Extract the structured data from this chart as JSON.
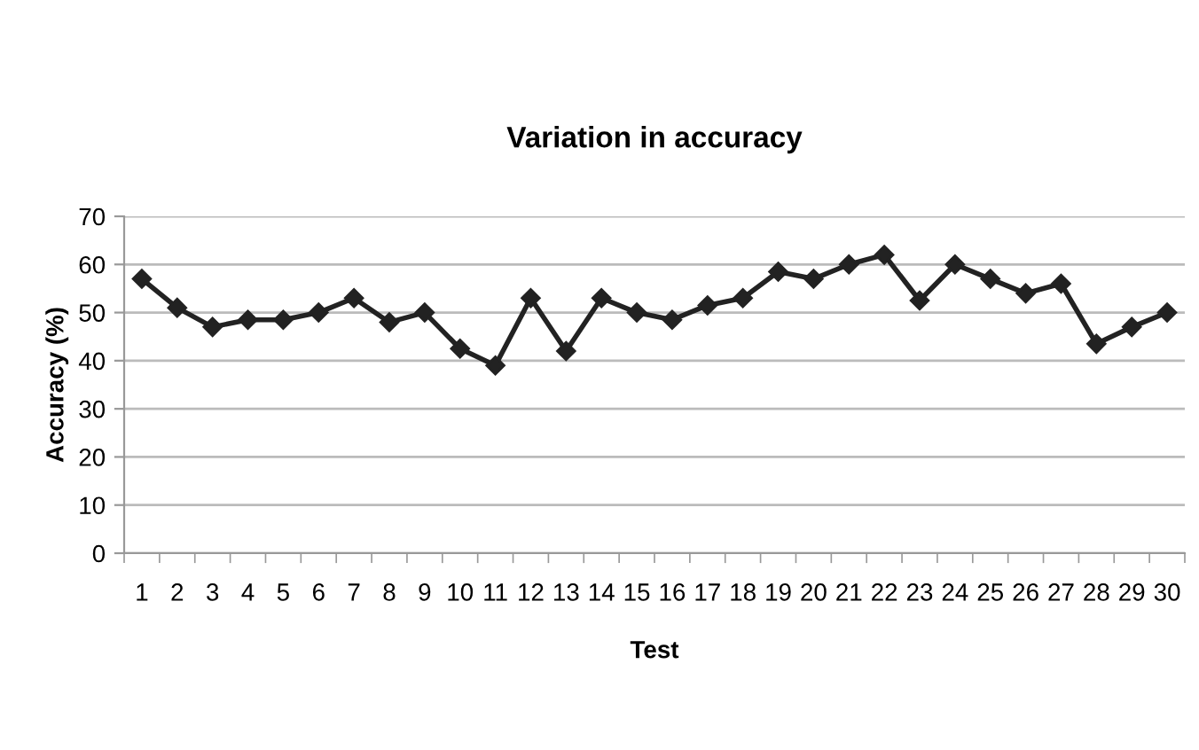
{
  "chart_data": {
    "type": "line",
    "title": "Variation in accuracy",
    "xlabel": "Test",
    "ylabel": "Accuracy (%)",
    "categories": [
      "1",
      "2",
      "3",
      "4",
      "5",
      "6",
      "7",
      "8",
      "9",
      "10",
      "11",
      "12",
      "13",
      "14",
      "15",
      "16",
      "17",
      "18",
      "19",
      "20",
      "21",
      "22",
      "23",
      "24",
      "25",
      "26",
      "27",
      "28",
      "29",
      "30"
    ],
    "series": [
      {
        "color": "#222222",
        "values": [
          57,
          51,
          47,
          48.5,
          48.5,
          50,
          53,
          48,
          50,
          42.5,
          39,
          53,
          42,
          53,
          50,
          48.5,
          51.5,
          53,
          58.5,
          57,
          60,
          62,
          52.5,
          60,
          57,
          54,
          56,
          43.5,
          47,
          50
        ]
      }
    ],
    "ylim": [
      0,
      70
    ],
    "yticks": [
      0,
      10,
      20,
      30,
      40,
      50,
      60,
      70
    ],
    "grid": "y",
    "marker": "diamond",
    "line_style": "solid",
    "legend": false
  }
}
